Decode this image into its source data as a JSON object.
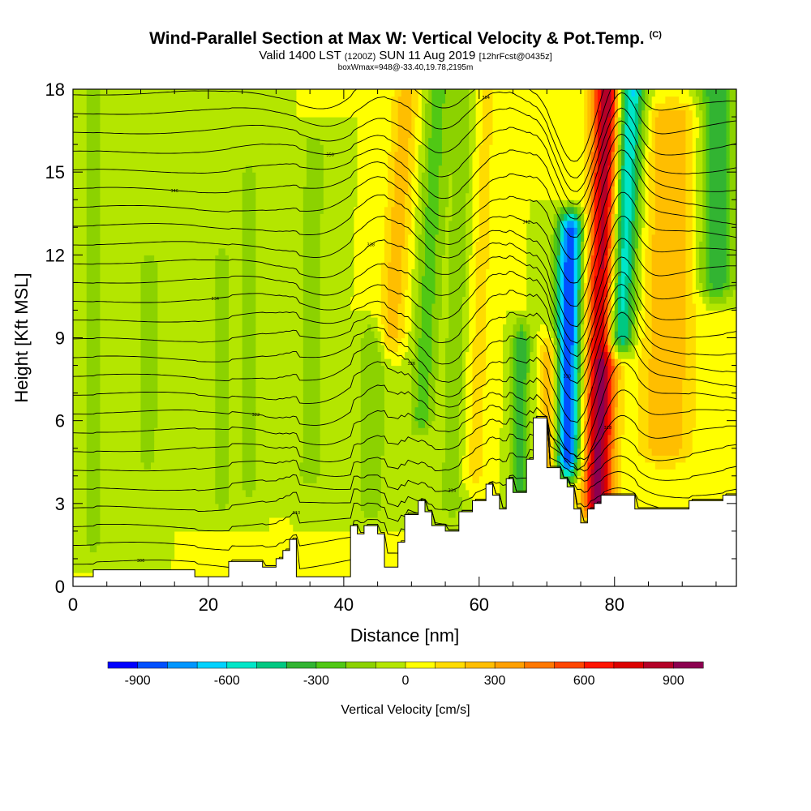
{
  "header": {
    "title": "Wind-Parallel Section at Max W: Vertical Velocity & Pot.Temp.",
    "copyright": "(C)",
    "valid_prefix": "Valid 1400 LST",
    "valid_utc": "(1200Z)",
    "valid_date": "SUN 11 Aug 2019",
    "forecast": "[12hrFcst@0435z]",
    "box_info": "boxWmax=948@-33.40,19.78,2195m"
  },
  "chart_data": {
    "type": "heatmap",
    "xlabel": "Distance [nm]",
    "ylabel": "Height [Kft MSL]",
    "xlim": [
      0,
      98
    ],
    "ylim": [
      0,
      18
    ],
    "x_ticks": [
      "0",
      "20",
      "40",
      "60",
      "80"
    ],
    "y_ticks": [
      "0",
      "3",
      "6",
      "9",
      "12",
      "15",
      "18"
    ],
    "colorbar": {
      "label": "Vertical Velocity [cm/s]",
      "tick_labels": [
        "-900",
        "-600",
        "-300",
        "0",
        "300",
        "600",
        "900"
      ],
      "colors": [
        "#0000ff",
        "#0050ff",
        "#0096ff",
        "#00d2ff",
        "#00e6c8",
        "#00c882",
        "#32b432",
        "#50c814",
        "#8cd200",
        "#b4e600",
        "#ffff00",
        "#ffdc00",
        "#ffbe00",
        "#ffa000",
        "#ff7800",
        "#ff4600",
        "#ff1400",
        "#dc0000",
        "#b40028",
        "#8c0050"
      ]
    },
    "background_w": 0,
    "w_features": [
      {
        "x": 77.5,
        "y_bottom": 3.0,
        "y_top": 18.0,
        "tilt": 0.1,
        "width": 2.2,
        "w": 948
      },
      {
        "x": 73.0,
        "y_bottom": 4.5,
        "y_top": 13.0,
        "tilt": 0.05,
        "width": 1.8,
        "w": -900
      },
      {
        "x": 80.5,
        "y_bottom": 9.0,
        "y_top": 18.0,
        "tilt": 0.2,
        "width": 2.2,
        "w": -700
      },
      {
        "x": 87.5,
        "y_bottom": 5.0,
        "y_top": 17.0,
        "tilt": 0.08,
        "width": 4.0,
        "w": 300
      },
      {
        "x": 95.0,
        "y_bottom": 11.0,
        "y_top": 18.0,
        "tilt": 0.0,
        "width": 2.5,
        "w": -400
      },
      {
        "x": 70.5,
        "y_bottom": 4.0,
        "y_top": 8.5,
        "tilt": 0.0,
        "width": 1.5,
        "w": 300
      },
      {
        "x": 47.0,
        "y_bottom": 9.0,
        "y_top": 18.0,
        "tilt": 0.25,
        "width": 2.0,
        "w": 250
      },
      {
        "x": 44.0,
        "y_bottom": 3.0,
        "y_top": 9.0,
        "tilt": 0.05,
        "width": 2.0,
        "w": -200
      },
      {
        "x": 51.5,
        "y_bottom": 6.0,
        "y_top": 18.0,
        "tilt": 0.2,
        "width": 1.8,
        "w": -250
      },
      {
        "x": 56.0,
        "y_bottom": 3.0,
        "y_top": 18.0,
        "tilt": 0.15,
        "width": 2.0,
        "w": -180
      },
      {
        "x": 66.0,
        "y_bottom": 3.5,
        "y_top": 9.0,
        "tilt": 0.05,
        "width": 1.4,
        "w": -350
      },
      {
        "x": 59.0,
        "y_bottom": 4.0,
        "y_top": 18.0,
        "tilt": 0.12,
        "width": 2.2,
        "w": 150
      },
      {
        "x": 35.0,
        "y_bottom": 4.0,
        "y_top": 16.0,
        "tilt": 0.05,
        "width": 2.0,
        "w": -150
      },
      {
        "x": 26.0,
        "y_bottom": 3.5,
        "y_top": 15.0,
        "tilt": 0.0,
        "width": 1.2,
        "w": -150
      },
      {
        "x": 22.0,
        "y_bottom": 3.0,
        "y_top": 12.0,
        "tilt": 0.0,
        "width": 1.2,
        "w": -150
      },
      {
        "x": 11.0,
        "y_bottom": 4.5,
        "y_top": 11.5,
        "tilt": 0.0,
        "width": 1.4,
        "w": -150
      },
      {
        "x": 3.0,
        "y_bottom": 1.5,
        "y_top": 18.0,
        "tilt": 0.0,
        "width": 2.0,
        "w": -120
      },
      {
        "x": 15.0,
        "y_bottom": 6.0,
        "y_top": 18.0,
        "tilt": 0.0,
        "width": 3.0,
        "w": -100
      }
    ],
    "terrain": [
      [
        0,
        0.35
      ],
      [
        3,
        0.35
      ],
      [
        3,
        0.6
      ],
      [
        8,
        0.6
      ],
      [
        8,
        0.6
      ],
      [
        18,
        0.6
      ],
      [
        18,
        0.35
      ],
      [
        23,
        0.35
      ],
      [
        23,
        0.9
      ],
      [
        28,
        0.9
      ],
      [
        28,
        0.7
      ],
      [
        30,
        0.7
      ],
      [
        30,
        1.0
      ],
      [
        31,
        1.0
      ],
      [
        31,
        1.3
      ],
      [
        32,
        1.3
      ],
      [
        32,
        1.7
      ],
      [
        33,
        1.7
      ],
      [
        33,
        0.35
      ],
      [
        41,
        0.35
      ],
      [
        41,
        2.2
      ],
      [
        42,
        2.2
      ],
      [
        42,
        1.9
      ],
      [
        43,
        1.9
      ],
      [
        43,
        2.2
      ],
      [
        45,
        2.2
      ],
      [
        45,
        1.9
      ],
      [
        46,
        1.9
      ],
      [
        46,
        0.7
      ],
      [
        48,
        0.7
      ],
      [
        48,
        1.6
      ],
      [
        49,
        1.6
      ],
      [
        49,
        2.6
      ],
      [
        51,
        2.6
      ],
      [
        51,
        3.1
      ],
      [
        52,
        3.1
      ],
      [
        52,
        2.7
      ],
      [
        53,
        2.7
      ],
      [
        53,
        2.2
      ],
      [
        55,
        2.2
      ],
      [
        55,
        2.0
      ],
      [
        57,
        2.0
      ],
      [
        57,
        2.7
      ],
      [
        59,
        2.7
      ],
      [
        59,
        3.1
      ],
      [
        61,
        3.1
      ],
      [
        61,
        3.7
      ],
      [
        62,
        3.7
      ],
      [
        62,
        3.3
      ],
      [
        63,
        3.3
      ],
      [
        63,
        2.8
      ],
      [
        64,
        2.8
      ],
      [
        64,
        3.9
      ],
      [
        65,
        3.9
      ],
      [
        65,
        3.4
      ],
      [
        67,
        3.4
      ],
      [
        67,
        4.6
      ],
      [
        68,
        4.6
      ],
      [
        68,
        6.1
      ],
      [
        70,
        6.1
      ],
      [
        70,
        4.3
      ],
      [
        72,
        4.3
      ],
      [
        72,
        3.9
      ],
      [
        73,
        3.9
      ],
      [
        73,
        3.6
      ],
      [
        74,
        3.6
      ],
      [
        74,
        2.8
      ],
      [
        75,
        2.8
      ],
      [
        75,
        2.3
      ],
      [
        76,
        2.3
      ],
      [
        76,
        2.8
      ],
      [
        77,
        2.8
      ],
      [
        77,
        3.0
      ],
      [
        78,
        3.0
      ],
      [
        78,
        3.3
      ],
      [
        83,
        3.3
      ],
      [
        83,
        2.8
      ],
      [
        91,
        2.8
      ],
      [
        91,
        3.1
      ],
      [
        96,
        3.1
      ],
      [
        96,
        3.3
      ],
      [
        98,
        3.3
      ]
    ],
    "isentropes": {
      "count": 26,
      "start_height": 0.8,
      "spacing": 0.68
    },
    "isentrope_labels": [
      "306",
      "310",
      "314",
      "318",
      "322",
      "326",
      "330",
      "334",
      "338",
      "342",
      "346",
      "350",
      "354"
    ]
  }
}
